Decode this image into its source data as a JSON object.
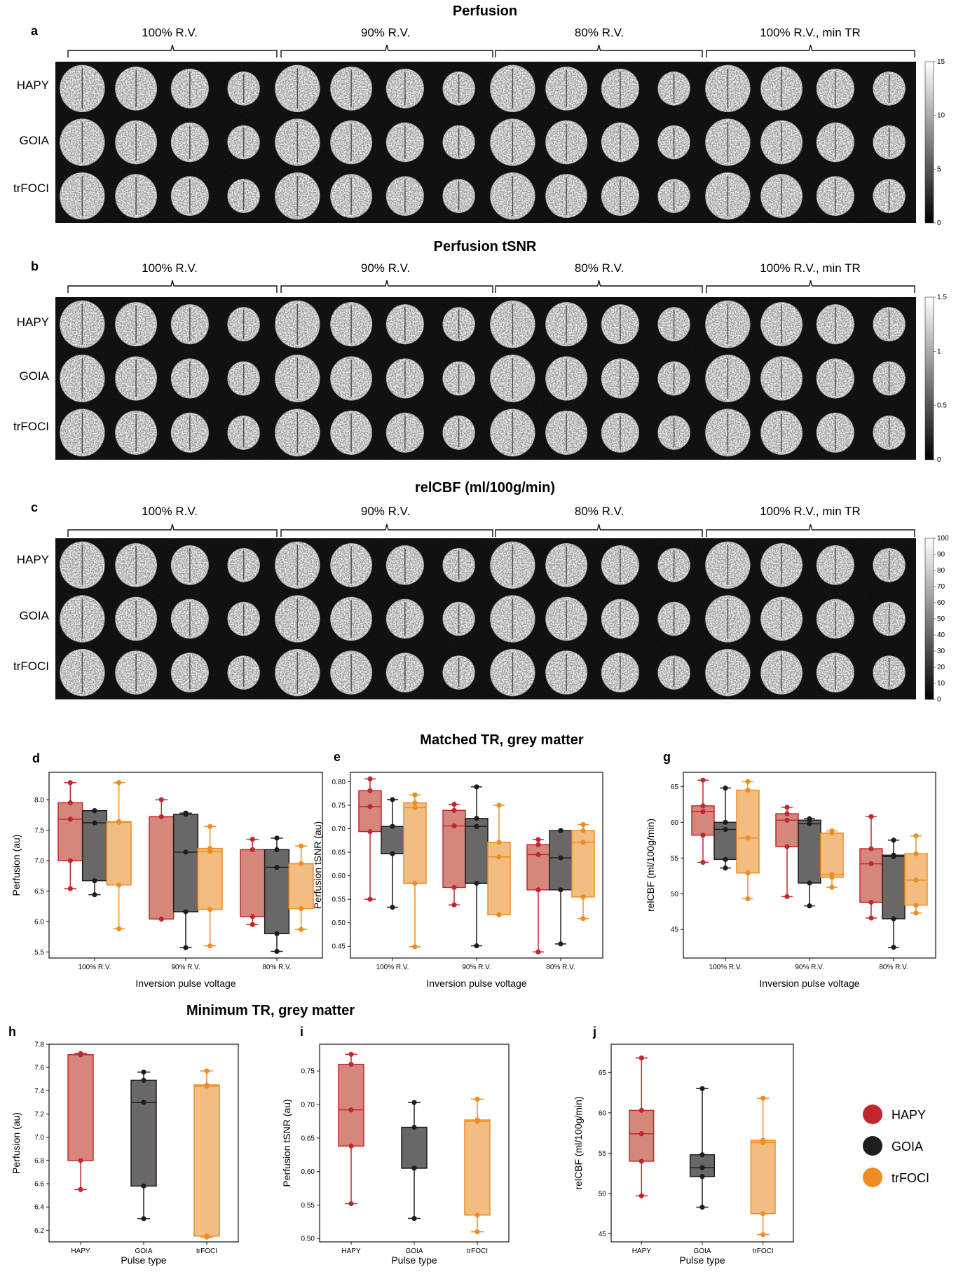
{
  "colors": {
    "HAPY": "#c0282d",
    "GOIA": "#1e1e1e",
    "trFOCI": "#f08c22"
  },
  "box_fill": {
    "HAPY": "#d5877c",
    "GOIA": "#6b6767",
    "trFOCI": "#f1bd80"
  },
  "image_panels": [
    {
      "label": "a",
      "title": "Perfusion",
      "groups": [
        "100% R.V.",
        "90% R.V.",
        "80% R.V.",
        "100% R.V., min TR"
      ],
      "rows": [
        "HAPY",
        "GOIA",
        "trFOCI"
      ],
      "colorbar": {
        "min": 0,
        "max": 15,
        "ticks": [
          "15",
          "10",
          "5",
          "0"
        ]
      }
    },
    {
      "label": "b",
      "title": "Perfusion tSNR",
      "groups": [
        "100% R.V.",
        "90% R.V.",
        "80% R.V.",
        "100% R.V., min TR"
      ],
      "rows": [
        "HAPY",
        "GOIA",
        "trFOCI"
      ],
      "colorbar": {
        "min": 0,
        "max": 1.5,
        "ticks": [
          "1.5",
          "1",
          "0.5",
          "0"
        ]
      }
    },
    {
      "label": "c",
      "title": "relCBF (ml/100g/min)",
      "groups": [
        "100% R.V.",
        "90% R.V.",
        "80% R.V.",
        "100% R.V., min TR"
      ],
      "rows": [
        "HAPY",
        "GOIA",
        "trFOCI"
      ],
      "colorbar": {
        "min": 0,
        "max": 100,
        "ticks": [
          "100",
          "90",
          "80",
          "70",
          "60",
          "50",
          "40",
          "30",
          "20",
          "10",
          "0"
        ]
      }
    }
  ],
  "section_titles": {
    "matched": "Matched TR, grey matter",
    "minimum": "Minimum TR, grey matter"
  },
  "legend": [
    {
      "name": "HAPY"
    },
    {
      "name": "GOIA"
    },
    {
      "name": "trFOCI"
    }
  ],
  "chart_data": [
    {
      "id": "d",
      "label": "d",
      "type": "box",
      "xlabel": "Inversion pulse voltage",
      "ylabel": "Perfusion (au)",
      "ylim": [
        5.4,
        8.45
      ],
      "yticks": [
        5.5,
        6.0,
        6.5,
        7.0,
        7.5,
        8.0
      ],
      "ytick_labels": [
        "5.5",
        "6.0",
        "6.5",
        "7.0",
        "7.5",
        "8.0"
      ],
      "categories": [
        "100% R.V.",
        "90% R.V.",
        "80% R.V."
      ],
      "series": [
        {
          "name": "HAPY",
          "boxes": [
            {
              "min": 6.54,
              "q1": 7.0,
              "med": 7.68,
              "q3": 7.95,
              "max": 8.28,
              "points": [
                8.28,
                7.95,
                7.68,
                7.0,
                6.54
              ]
            },
            {
              "min": 6.04,
              "q1": 6.04,
              "med": 7.72,
              "q3": 7.72,
              "max": 8.0,
              "points": [
                8.0,
                7.72,
                7.72,
                6.04
              ]
            },
            {
              "min": 5.95,
              "q1": 6.08,
              "med": 7.18,
              "q3": 7.18,
              "max": 7.35,
              "points": [
                7.35,
                7.18,
                6.08,
                5.95
              ]
            }
          ]
        },
        {
          "name": "GOIA",
          "boxes": [
            {
              "min": 6.44,
              "q1": 6.67,
              "med": 7.62,
              "q3": 7.82,
              "max": 7.82,
              "points": [
                7.82,
                7.82,
                7.62,
                6.67,
                6.44
              ]
            },
            {
              "min": 5.57,
              "q1": 6.16,
              "med": 7.14,
              "q3": 7.76,
              "max": 7.78,
              "points": [
                7.78,
                7.76,
                7.14,
                6.16,
                5.57
              ]
            },
            {
              "min": 5.51,
              "q1": 5.8,
              "med": 6.89,
              "q3": 7.18,
              "max": 7.37,
              "points": [
                7.37,
                7.18,
                6.89,
                5.8,
                5.51
              ]
            }
          ]
        },
        {
          "name": "trFOCI",
          "boxes": [
            {
              "min": 5.88,
              "q1": 6.6,
              "med": 7.63,
              "q3": 7.64,
              "max": 8.28,
              "points": [
                8.28,
                7.64,
                7.63,
                6.6,
                5.88
              ]
            },
            {
              "min": 5.6,
              "q1": 6.2,
              "med": 7.15,
              "q3": 7.2,
              "max": 7.56,
              "points": [
                7.56,
                7.2,
                7.15,
                6.2,
                5.6
              ]
            },
            {
              "min": 5.87,
              "q1": 6.21,
              "med": 6.95,
              "q3": 6.95,
              "max": 7.24,
              "points": [
                7.24,
                6.95,
                6.95,
                6.21,
                5.87
              ]
            }
          ]
        }
      ]
    },
    {
      "id": "e",
      "label": "e",
      "type": "box",
      "xlabel": "Inversion pulse voltage",
      "ylabel": "Perfusion tSNR (au)",
      "ylim": [
        0.425,
        0.82
      ],
      "yticks": [
        0.45,
        0.5,
        0.55,
        0.6,
        0.65,
        0.7,
        0.75,
        0.8
      ],
      "ytick_labels": [
        "0.45",
        "0.50",
        "0.55",
        "0.60",
        "0.65",
        "0.70",
        "0.75",
        "0.80"
      ],
      "categories": [
        "100% R.V.",
        "90% R.V.",
        "80% R.V."
      ],
      "series": [
        {
          "name": "HAPY",
          "boxes": [
            {
              "min": 0.55,
              "q1": 0.694,
              "med": 0.747,
              "q3": 0.781,
              "max": 0.806,
              "points": [
                0.806,
                0.781,
                0.747,
                0.694,
                0.55
              ]
            },
            {
              "min": 0.538,
              "q1": 0.575,
              "med": 0.706,
              "q3": 0.739,
              "max": 0.752,
              "points": [
                0.752,
                0.739,
                0.706,
                0.575,
                0.538
              ]
            },
            {
              "min": 0.438,
              "q1": 0.57,
              "med": 0.645,
              "q3": 0.666,
              "max": 0.677,
              "points": [
                0.677,
                0.666,
                0.645,
                0.57,
                0.438
              ]
            }
          ]
        },
        {
          "name": "GOIA",
          "boxes": [
            {
              "min": 0.533,
              "q1": 0.647,
              "med": 0.647,
              "q3": 0.705,
              "max": 0.762,
              "points": [
                0.762,
                0.705,
                0.647,
                0.533
              ]
            },
            {
              "min": 0.451,
              "q1": 0.584,
              "med": 0.705,
              "q3": 0.722,
              "max": 0.789,
              "points": [
                0.789,
                0.722,
                0.705,
                0.584,
                0.451
              ]
            },
            {
              "min": 0.455,
              "q1": 0.57,
              "med": 0.638,
              "q3": 0.696,
              "max": 0.696,
              "points": [
                0.696,
                0.696,
                0.638,
                0.57,
                0.455
              ]
            }
          ]
        },
        {
          "name": "trFOCI",
          "boxes": [
            {
              "min": 0.449,
              "q1": 0.584,
              "med": 0.745,
              "q3": 0.755,
              "max": 0.772,
              "points": [
                0.772,
                0.755,
                0.745,
                0.584,
                0.449
              ]
            },
            {
              "min": 0.517,
              "q1": 0.517,
              "med": 0.64,
              "q3": 0.671,
              "max": 0.75,
              "points": [
                0.75,
                0.671,
                0.64,
                0.517,
                0.517
              ]
            },
            {
              "min": 0.509,
              "q1": 0.555,
              "med": 0.671,
              "q3": 0.696,
              "max": 0.709,
              "points": [
                0.709,
                0.696,
                0.671,
                0.555,
                0.509
              ]
            }
          ]
        }
      ]
    },
    {
      "id": "g",
      "label": "g",
      "type": "box",
      "xlabel": "Inversion pulse voltage",
      "ylabel": "relCBF (ml/100g/min)",
      "ylim": [
        41,
        67
      ],
      "yticks": [
        45,
        50,
        55,
        60,
        65
      ],
      "ytick_labels": [
        "45",
        "50",
        "55",
        "60",
        "65"
      ],
      "categories": [
        "100% R.V.",
        "90% R.V.",
        "80% R.V."
      ],
      "series": [
        {
          "name": "HAPY",
          "boxes": [
            {
              "min": 54.4,
              "q1": 58.2,
              "med": 61.5,
              "q3": 62.3,
              "max": 65.9,
              "points": [
                65.9,
                62.3,
                61.5,
                58.2,
                54.4
              ]
            },
            {
              "min": 49.6,
              "q1": 56.6,
              "med": 60.3,
              "q3": 61.2,
              "max": 62.1,
              "points": [
                62.1,
                61.2,
                60.3,
                56.6,
                49.6
              ]
            },
            {
              "min": 46.6,
              "q1": 48.8,
              "med": 54.2,
              "q3": 56.3,
              "max": 60.8,
              "points": [
                60.8,
                56.3,
                54.2,
                48.8,
                46.6
              ]
            }
          ]
        },
        {
          "name": "GOIA",
          "boxes": [
            {
              "min": 53.6,
              "q1": 54.8,
              "med": 59.0,
              "q3": 60.0,
              "max": 64.8,
              "points": [
                64.8,
                60.0,
                59.0,
                54.8,
                53.6
              ]
            },
            {
              "min": 48.3,
              "q1": 51.5,
              "med": 59.8,
              "q3": 60.3,
              "max": 60.5,
              "points": [
                60.5,
                60.3,
                59.8,
                51.5,
                48.3
              ]
            },
            {
              "min": 42.5,
              "q1": 46.5,
              "med": 55.2,
              "q3": 55.4,
              "max": 57.5,
              "points": [
                57.5,
                55.4,
                55.2,
                46.5,
                42.5
              ]
            }
          ]
        },
        {
          "name": "trFOCI",
          "boxes": [
            {
              "min": 49.3,
              "q1": 52.9,
              "med": 57.8,
              "q3": 64.5,
              "max": 65.7,
              "points": [
                65.7,
                64.5,
                57.8,
                52.9,
                49.3
              ]
            },
            {
              "min": 50.9,
              "q1": 52.3,
              "med": 52.7,
              "q3": 58.5,
              "max": 58.8,
              "points": [
                58.8,
                58.5,
                52.7,
                52.3,
                50.9
              ]
            },
            {
              "min": 47.3,
              "q1": 48.4,
              "med": 51.9,
              "q3": 55.6,
              "max": 58.1,
              "points": [
                58.1,
                55.6,
                51.9,
                48.4,
                47.3
              ]
            }
          ]
        }
      ]
    },
    {
      "id": "h",
      "label": "h",
      "type": "box",
      "xlabel": "Pulse type",
      "ylabel": "Perfusion (au)",
      "ylim": [
        6.1,
        7.8
      ],
      "yticks": [
        6.2,
        6.4,
        6.6,
        6.8,
        7.0,
        7.2,
        7.4,
        7.6,
        7.8
      ],
      "ytick_labels": [
        "6.2",
        "6.4",
        "6.6",
        "6.8",
        "7.0",
        "7.2",
        "7.4",
        "7.6",
        "7.8"
      ],
      "categories": [
        "HAPY",
        "GOIA",
        "trFOCI"
      ],
      "series": [
        {
          "name": "HAPY",
          "boxes": [
            null,
            null,
            null
          ],
          "single": [
            {
              "min": 6.55,
              "q1": 6.8,
              "med": 7.71,
              "q3": 7.71,
              "max": 7.72,
              "points": [
                7.72,
                7.71,
                7.71,
                6.8,
                6.55
              ]
            }
          ]
        },
        {
          "name": "GOIA",
          "single": [
            {
              "min": 6.3,
              "q1": 6.58,
              "med": 7.3,
              "q3": 7.49,
              "max": 7.56,
              "points": [
                7.56,
                7.49,
                7.3,
                6.58,
                6.3
              ]
            }
          ]
        },
        {
          "name": "trFOCI",
          "single": [
            {
              "min": 6.14,
              "q1": 6.15,
              "med": 7.44,
              "q3": 7.45,
              "max": 7.57,
              "points": [
                7.57,
                7.45,
                7.44,
                6.15,
                6.14
              ]
            }
          ]
        }
      ]
    },
    {
      "id": "i",
      "label": "i",
      "type": "box",
      "xlabel": "Pulse type",
      "ylabel": "Perfusion tSNR (au)",
      "ylim": [
        0.495,
        0.79
      ],
      "yticks": [
        0.5,
        0.55,
        0.6,
        0.65,
        0.7,
        0.75
      ],
      "ytick_labels": [
        "0.50",
        "0.55",
        "0.60",
        "0.65",
        "0.70",
        "0.75"
      ],
      "categories": [
        "HAPY",
        "GOIA",
        "trFOCI"
      ],
      "series": [
        {
          "name": "HAPY",
          "single": [
            {
              "min": 0.552,
              "q1": 0.638,
              "med": 0.692,
              "q3": 0.76,
              "max": 0.775,
              "points": [
                0.775,
                0.76,
                0.692,
                0.638,
                0.552
              ]
            }
          ]
        },
        {
          "name": "GOIA",
          "single": [
            {
              "min": 0.53,
              "q1": 0.605,
              "med": 0.605,
              "q3": 0.666,
              "max": 0.703,
              "points": [
                0.703,
                0.666,
                0.605,
                0.53
              ]
            }
          ]
        },
        {
          "name": "trFOCI",
          "single": [
            {
              "min": 0.51,
              "q1": 0.535,
              "med": 0.675,
              "q3": 0.677,
              "max": 0.708,
              "points": [
                0.708,
                0.677,
                0.675,
                0.535,
                0.51
              ]
            }
          ]
        }
      ]
    },
    {
      "id": "j",
      "label": "j",
      "type": "box",
      "xlabel": "Pulse type",
      "ylabel": "relCBF (ml/100g/min)",
      "ylim": [
        44,
        68.5
      ],
      "yticks": [
        45,
        50,
        55,
        60,
        65
      ],
      "ytick_labels": [
        "45",
        "50",
        "55",
        "60",
        "65"
      ],
      "categories": [
        "HAPY",
        "GOIA",
        "trFOCI"
      ],
      "series": [
        {
          "name": "HAPY",
          "single": [
            {
              "min": 49.7,
              "q1": 54.0,
              "med": 57.4,
              "q3": 60.3,
              "max": 66.8,
              "points": [
                66.8,
                60.3,
                57.4,
                54.0,
                49.7
              ]
            }
          ]
        },
        {
          "name": "GOIA",
          "single": [
            {
              "min": 48.3,
              "q1": 52.1,
              "med": 53.2,
              "q3": 54.8,
              "max": 63.0,
              "points": [
                63.0,
                54.8,
                53.2,
                52.1,
                48.3
              ]
            }
          ]
        },
        {
          "name": "trFOCI",
          "single": [
            {
              "min": 44.9,
              "q1": 47.5,
              "med": 56.3,
              "q3": 56.6,
              "max": 61.8,
              "points": [
                61.8,
                56.6,
                56.3,
                47.5,
                44.9
              ]
            }
          ]
        }
      ]
    }
  ]
}
